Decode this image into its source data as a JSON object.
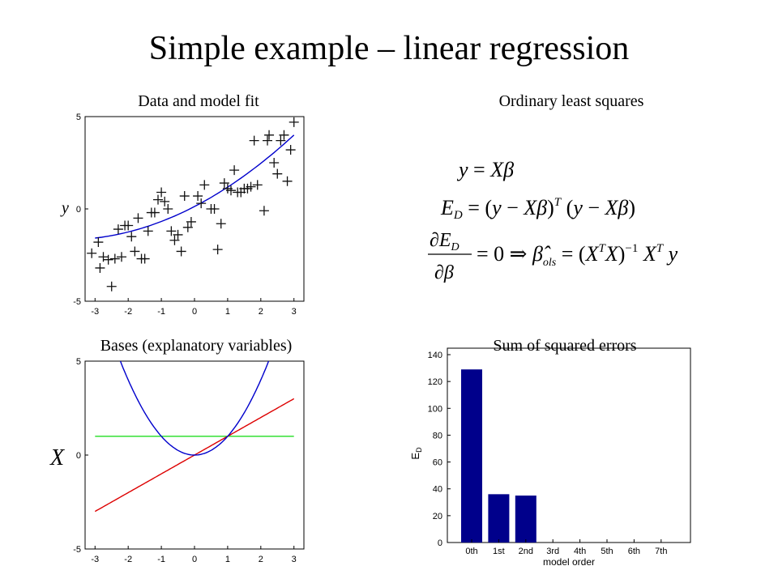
{
  "slide": {
    "title": "Simple example – linear regression"
  },
  "panels": {
    "data_fit": {
      "title": "Data and model fit",
      "ylabel": "y"
    },
    "ols": {
      "title": "Ordinary least squares",
      "eq1": "y = Xβ",
      "eq2": "E_D = (y − Xβ)^T (y − Xβ)",
      "eq3": "∂E_D/∂β = 0 ⇒ β̂_ols = (X^T X)^−1 X^T y"
    },
    "bases": {
      "title": "Bases (explanatory variables)",
      "ylabel": "X"
    },
    "sse": {
      "title": "Sum of squared errors",
      "xlabel": "model order",
      "ylabel": "E_D"
    }
  },
  "colors": {
    "fit": "#0000cc",
    "quadratic": "#0000cc",
    "linear": "#dd0000",
    "constant": "#22dd22",
    "bar": "#00008b"
  },
  "chart_data": [
    {
      "type": "scatter",
      "title": "Data and model fit",
      "ylabel": "y",
      "xlim": [
        -3.3,
        3.3
      ],
      "ylim": [
        -5,
        5
      ],
      "xticks": [
        "-3",
        "-2",
        "-1",
        "0",
        "1",
        "2",
        "3"
      ],
      "yticks": [
        "-5",
        "0",
        "5"
      ],
      "grid": false,
      "points": [
        [
          -3.1,
          -2.4
        ],
        [
          -2.9,
          -1.8
        ],
        [
          -2.85,
          -3.2
        ],
        [
          -2.75,
          -2.6
        ],
        [
          -2.6,
          -2.75
        ],
        [
          -2.5,
          -4.2
        ],
        [
          -2.4,
          -2.7
        ],
        [
          -2.3,
          -1.1
        ],
        [
          -2.2,
          -2.6
        ],
        [
          -2.1,
          -0.9
        ],
        [
          -2.0,
          -0.9
        ],
        [
          -1.9,
          -1.5
        ],
        [
          -1.8,
          -2.3
        ],
        [
          -1.7,
          -0.5
        ],
        [
          -1.6,
          -2.7
        ],
        [
          -1.5,
          -2.7
        ],
        [
          -1.4,
          -1.2
        ],
        [
          -1.3,
          -0.2
        ],
        [
          -1.2,
          -0.2
        ],
        [
          -1.1,
          0.5
        ],
        [
          -1.0,
          0.9
        ],
        [
          -0.9,
          0.4
        ],
        [
          -0.8,
          0.0
        ],
        [
          -0.7,
          -1.2
        ],
        [
          -0.6,
          -1.7
        ],
        [
          -0.5,
          -1.4
        ],
        [
          -0.4,
          -2.3
        ],
        [
          -0.3,
          0.7
        ],
        [
          -0.2,
          -1.0
        ],
        [
          -0.1,
          -0.7
        ],
        [
          0.1,
          0.7
        ],
        [
          0.2,
          0.3
        ],
        [
          0.3,
          1.3
        ],
        [
          0.5,
          0.0
        ],
        [
          0.6,
          0.0
        ],
        [
          0.7,
          -2.2
        ],
        [
          0.8,
          -0.8
        ],
        [
          0.9,
          1.4
        ],
        [
          1.0,
          1.1
        ],
        [
          1.1,
          1.0
        ],
        [
          1.2,
          2.1
        ],
        [
          1.3,
          0.9
        ],
        [
          1.4,
          0.9
        ],
        [
          1.5,
          1.1
        ],
        [
          1.6,
          1.1
        ],
        [
          1.7,
          1.2
        ],
        [
          1.8,
          3.7
        ],
        [
          1.9,
          1.3
        ],
        [
          2.1,
          -0.1
        ],
        [
          2.2,
          3.7
        ],
        [
          2.25,
          4.0
        ],
        [
          2.4,
          2.5
        ],
        [
          2.5,
          1.9
        ],
        [
          2.6,
          3.7
        ],
        [
          2.7,
          4.0
        ],
        [
          2.8,
          1.5
        ],
        [
          2.9,
          3.2
        ],
        [
          3.0,
          4.7
        ]
      ],
      "fit": {
        "coefficients": [
          0.13,
          0.93,
          0.12
        ],
        "x_range": [
          -3,
          3
        ]
      }
    },
    {
      "type": "line",
      "title": "Bases (explanatory variables)",
      "ylabel": "X",
      "xlim": [
        -3.3,
        3.3
      ],
      "ylim": [
        -5,
        5
      ],
      "xticks": [
        "-3",
        "-2",
        "-1",
        "0",
        "1",
        "2",
        "3"
      ],
      "yticks": [
        "-5",
        "0",
        "5"
      ],
      "grid": false,
      "series": [
        {
          "kind": "constant",
          "x_range": [
            -3,
            3
          ],
          "coefficients": [
            1,
            0,
            0
          ]
        },
        {
          "kind": "linear",
          "x_range": [
            -3,
            3
          ],
          "coefficients": [
            0,
            1,
            0
          ]
        },
        {
          "kind": "quadratic",
          "x_range": [
            -3,
            3
          ],
          "coefficients": [
            0,
            0,
            1
          ]
        }
      ]
    },
    {
      "type": "bar",
      "title": "Sum of squared errors",
      "xlabel": "model order",
      "ylabel": "E_D",
      "categories": [
        "0th",
        "1st",
        "2nd",
        "3rd",
        "4th",
        "5th",
        "6th",
        "7th"
      ],
      "values": [
        129,
        36,
        35,
        0,
        0,
        0,
        0,
        0
      ],
      "ylim": [
        0,
        140
      ],
      "yticks": [
        "0",
        "20",
        "40",
        "60",
        "80",
        "100",
        "120",
        "140"
      ],
      "grid": false
    }
  ]
}
